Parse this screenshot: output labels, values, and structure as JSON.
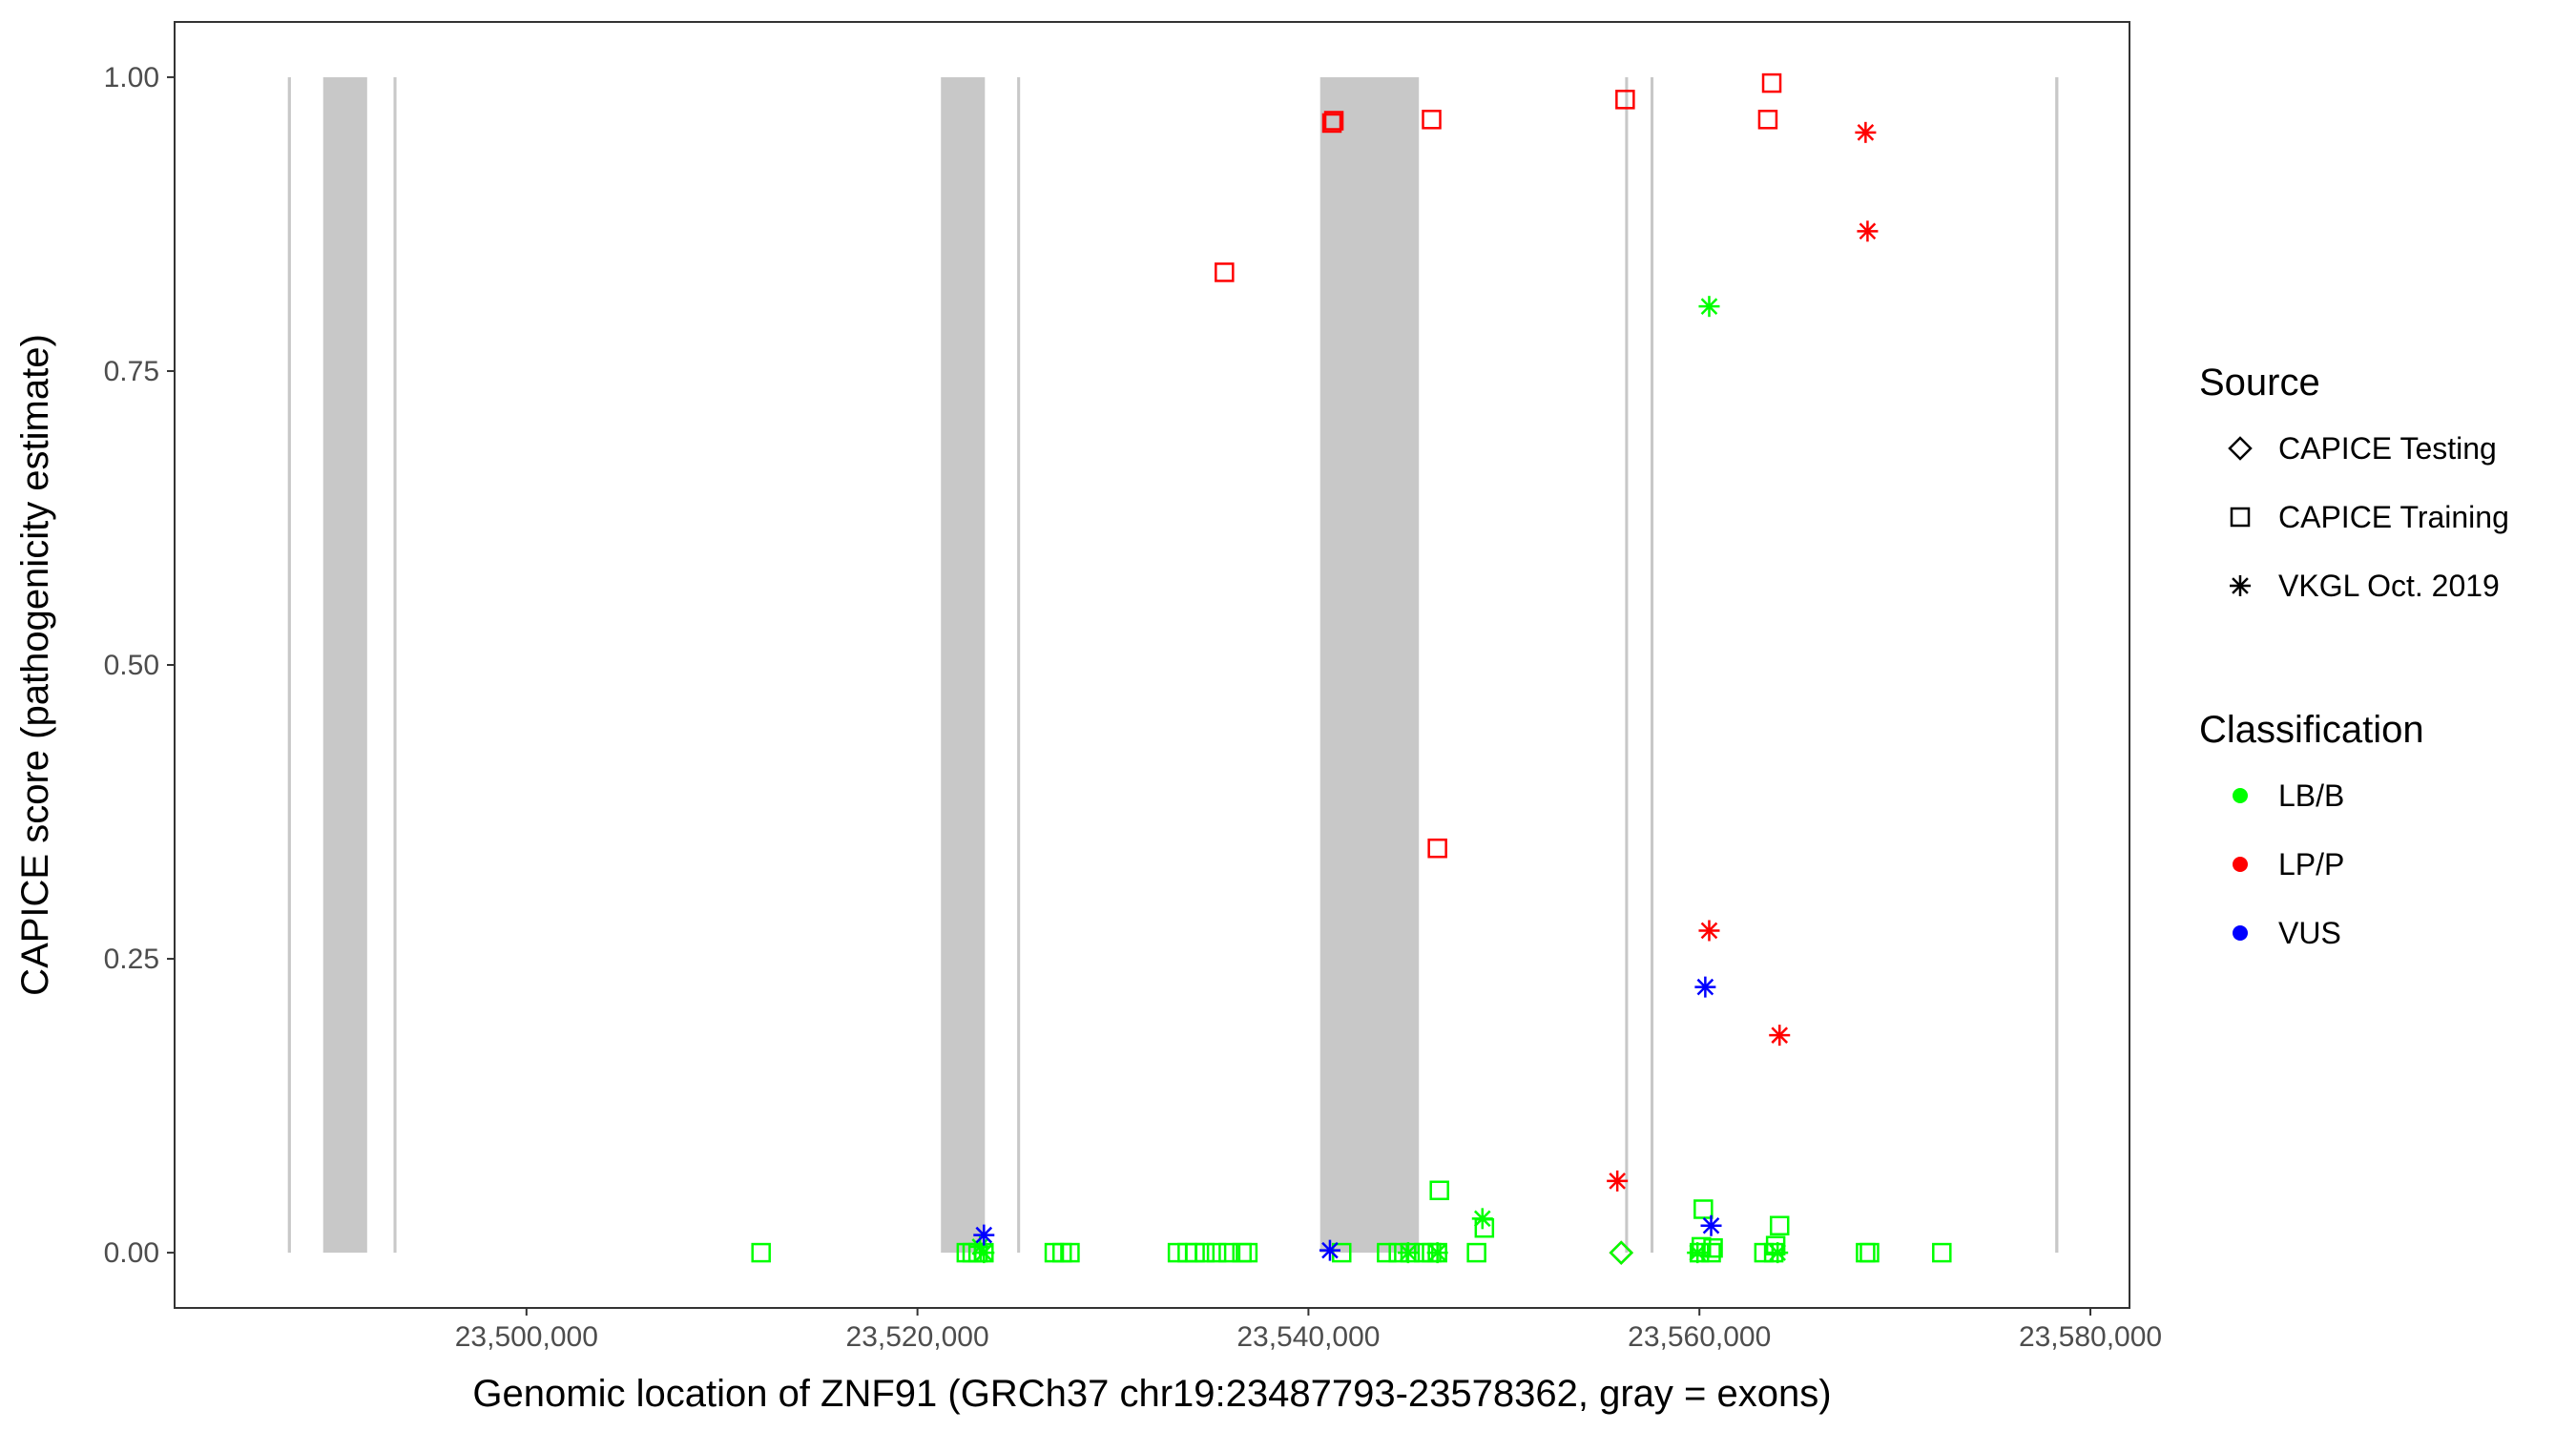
{
  "chart_data": {
    "type": "scatter",
    "title": "",
    "xlabel": "Genomic location of ZNF91 (GRCh37 chr19:23487793-23578362, gray = exons)",
    "ylabel": "CAPICE score (pathogenicity estimate)",
    "xlim": [
      23482000,
      23582000
    ],
    "ylim": [
      -0.047,
      1.047
    ],
    "x_ticks": [
      23500000,
      23520000,
      23540000,
      23560000,
      23580000
    ],
    "x_tick_labels": [
      "23,500,000",
      "23,520,000",
      "23,540,000",
      "23,560,000",
      "23,580,000"
    ],
    "y_ticks": [
      0,
      0.25,
      0.5,
      0.75,
      1
    ],
    "y_tick_labels": [
      "0.00",
      "0.25",
      "0.50",
      "0.75",
      "1.00"
    ],
    "grid": false,
    "exons": [
      [
        23487793,
        23487950
      ],
      [
        23489600,
        23491850
      ],
      [
        23493200,
        23493350
      ],
      [
        23521200,
        23523450
      ],
      [
        23525100,
        23525250
      ],
      [
        23540600,
        23545650
      ],
      [
        23556200,
        23556350
      ],
      [
        23557500,
        23557650
      ],
      [
        23578200,
        23578362
      ]
    ],
    "legend": {
      "source_title": "Source",
      "source_items": [
        {
          "label": "CAPICE Testing",
          "shape": "diamond"
        },
        {
          "label": "CAPICE Training",
          "shape": "square"
        },
        {
          "label": "VKGL Oct. 2019",
          "shape": "asterisk"
        }
      ],
      "class_title": "Classification",
      "class_items": [
        {
          "label": "LB/B",
          "color": "#00ff00"
        },
        {
          "label": "LP/P",
          "color": "#ff0000"
        },
        {
          "label": "VUS",
          "color": "#0000ff"
        }
      ]
    },
    "series": [
      {
        "source": "CAPICE Training",
        "classification": "LP/P",
        "points": [
          [
            23535700,
            0.834
          ],
          [
            23541200,
            0.961
          ],
          [
            23541300,
            0.963
          ],
          [
            23546300,
            0.964
          ],
          [
            23546600,
            0.344
          ],
          [
            23556200,
            0.981
          ],
          [
            23563500,
            0.964
          ],
          [
            23563700,
            0.995
          ]
        ]
      },
      {
        "source": "VKGL Oct. 2019",
        "classification": "LP/P",
        "points": [
          [
            23555800,
            0.061
          ],
          [
            23560500,
            0.274
          ],
          [
            23564100,
            0.185
          ],
          [
            23568500,
            0.953
          ],
          [
            23568600,
            0.869
          ]
        ]
      },
      {
        "source": "CAPICE Testing",
        "classification": "LP/P",
        "points": [
          [
            23556000,
            0.0
          ]
        ]
      },
      {
        "source": "CAPICE Training",
        "classification": "LB/B",
        "points": [
          [
            23512000,
            0.0
          ],
          [
            23522500,
            0.0
          ],
          [
            23522800,
            0.0
          ],
          [
            23523100,
            0.0
          ],
          [
            23523400,
            0.0
          ],
          [
            23527000,
            0.0
          ],
          [
            23527400,
            0.0
          ],
          [
            23527800,
            0.0
          ],
          [
            23533300,
            0.0
          ],
          [
            23533800,
            0.0
          ],
          [
            23534200,
            0.0
          ],
          [
            23534700,
            0.0
          ],
          [
            23535300,
            0.0
          ],
          [
            23535900,
            0.0
          ],
          [
            23536600,
            0.0
          ],
          [
            23536900,
            0.0
          ],
          [
            23541700,
            0.0
          ],
          [
            23544000,
            0.0
          ],
          [
            23544600,
            0.0
          ],
          [
            23545200,
            0.0
          ],
          [
            23545900,
            0.0
          ],
          [
            23546300,
            0.0
          ],
          [
            23546600,
            0.0
          ],
          [
            23546700,
            0.053
          ],
          [
            23548600,
            0.0
          ],
          [
            23549000,
            0.021
          ],
          [
            23560000,
            0.0
          ],
          [
            23560100,
            0.005
          ],
          [
            23560200,
            0.037
          ],
          [
            23560600,
            0.0
          ],
          [
            23560700,
            0.004
          ],
          [
            23563300,
            0.0
          ],
          [
            23563800,
            0.0
          ],
          [
            23563900,
            0.006
          ],
          [
            23564100,
            0.023
          ],
          [
            23568500,
            0.0
          ],
          [
            23568700,
            0.0
          ],
          [
            23572400,
            0.0
          ]
        ]
      },
      {
        "source": "VKGL Oct. 2019",
        "classification": "LB/B",
        "points": [
          [
            23523200,
            0.005
          ],
          [
            23523400,
            0.0
          ],
          [
            23545100,
            0.0
          ],
          [
            23546600,
            0.0
          ],
          [
            23548900,
            0.029
          ],
          [
            23559900,
            0.0
          ],
          [
            23560500,
            0.805
          ],
          [
            23564000,
            0.0
          ]
        ]
      },
      {
        "source": "CAPICE Testing",
        "classification": "LB/B",
        "points": [
          [
            23556000,
            0.0
          ]
        ]
      },
      {
        "source": "VKGL Oct. 2019",
        "classification": "VUS",
        "points": [
          [
            23523400,
            0.015
          ],
          [
            23541100,
            0.002
          ],
          [
            23560300,
            0.226
          ],
          [
            23560600,
            0.023
          ]
        ]
      }
    ]
  }
}
